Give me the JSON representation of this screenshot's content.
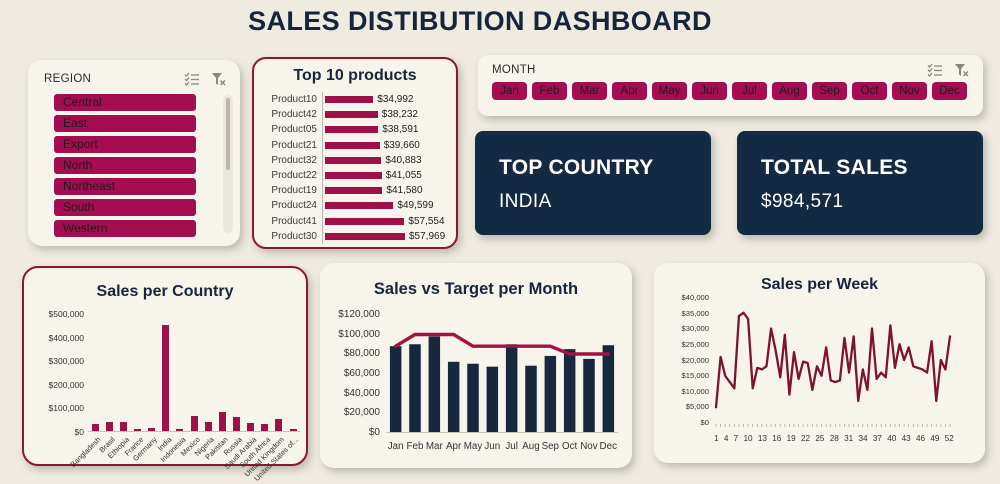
{
  "title": "SALES DISTIBUTION DASHBOARD",
  "colors": {
    "accent_crimson": "#A40D4F",
    "bar_crimson": "#9E1048",
    "line_crimson": "#A31243",
    "week_line_maroon": "#7D1232",
    "navy": "#16273E",
    "kpi_navy": "#132A42",
    "card_bg": "#F7F4EC",
    "page_bg": "#EFEBE1"
  },
  "region_slicer": {
    "label": "REGION",
    "icons": [
      "multi-select-icon",
      "clear-filter-icon"
    ],
    "items": [
      "Central",
      "East",
      "Export",
      "North",
      "Northeast",
      "South",
      "Western"
    ]
  },
  "month_slicer": {
    "label": "MONTH",
    "icons": [
      "multi-select-icon",
      "clear-filter-icon"
    ],
    "items": [
      "Jan",
      "Feb",
      "Mar",
      "Apr",
      "May",
      "Jun",
      "Jul",
      "Aug",
      "Sep",
      "Oct",
      "Nov",
      "Dec"
    ]
  },
  "cards": {
    "top_country": {
      "label": "TOP COUNTRY",
      "value": "INDIA"
    },
    "total_sales": {
      "label": "TOTAL SALES",
      "value": "$984,571"
    }
  },
  "chart_data": [
    {
      "id": "top_products",
      "type": "bar",
      "orientation": "horizontal",
      "title": "Top 10 products",
      "categories": [
        "Product10",
        "Product42",
        "Product05",
        "Product21",
        "Product32",
        "Product22",
        "Product19",
        "Product24",
        "Product41",
        "Product30"
      ],
      "values": [
        34992,
        38232,
        38591,
        39660,
        40883,
        41055,
        41580,
        49599,
        57554,
        57969
      ],
      "value_labels": [
        "$34,992",
        "$38,232",
        "$38,591",
        "$39,660",
        "$40,883",
        "$41,055",
        "$41,580",
        "$49,599",
        "$57,554",
        "$57,969"
      ]
    },
    {
      "id": "sales_per_country",
      "type": "bar",
      "title": "Sales per Country",
      "categories": [
        "Bangladesh",
        "Brasil",
        "Ethiopia",
        "France",
        "Germany",
        "India",
        "Indonesia",
        "Mexico",
        "Nigeria",
        "Pakistan",
        "Russia",
        "Saudi Arabia",
        "South Africa",
        "United Kingdom",
        "United States of..."
      ],
      "values": [
        28000,
        38000,
        38000,
        8000,
        12000,
        450000,
        8000,
        65000,
        40000,
        80000,
        60000,
        33000,
        28000,
        52000,
        10000
      ],
      "ylim": [
        0,
        500000
      ],
      "ytick_labels": [
        "$0",
        "$100,000",
        "$200,000",
        "$300,000",
        "$400,000",
        "$500,000"
      ],
      "grid": false,
      "legend": false
    },
    {
      "id": "sales_vs_target",
      "type": "combo",
      "title": "Sales vs Target per Month",
      "categories": [
        "Jan",
        "Feb",
        "Mar",
        "Apr",
        "May",
        "Jun",
        "Jul",
        "Aug",
        "Sep",
        "Oct",
        "Nov",
        "Dec"
      ],
      "series": [
        {
          "name": "Sales",
          "type": "bar",
          "values": [
            88000,
            90000,
            98000,
            72000,
            70000,
            67000,
            90000,
            68000,
            78000,
            85000,
            75000,
            89000
          ]
        },
        {
          "name": "Target",
          "type": "line",
          "values": [
            88000,
            100000,
            100000,
            100000,
            88000,
            88000,
            88000,
            88000,
            88000,
            80000,
            80000,
            80000
          ]
        }
      ],
      "ylim": [
        0,
        120000
      ],
      "ytick_labels": [
        "$0",
        "$20,000",
        "$40,000",
        "$60,000",
        "$80,000",
        "$100,000",
        "$120,000"
      ],
      "grid": false,
      "legend": false
    },
    {
      "id": "sales_per_week",
      "type": "line",
      "title": "Sales per Week",
      "x": [
        1,
        2,
        3,
        4,
        5,
        6,
        7,
        8,
        9,
        10,
        11,
        12,
        13,
        14,
        15,
        16,
        17,
        18,
        19,
        20,
        21,
        22,
        23,
        24,
        25,
        26,
        27,
        28,
        29,
        30,
        31,
        32,
        33,
        34,
        35,
        36,
        37,
        38,
        39,
        40,
        41,
        42,
        43,
        44,
        45,
        46,
        47,
        48,
        49,
        50,
        51,
        52
      ],
      "values": [
        5000,
        21000,
        15000,
        13000,
        11000,
        34000,
        35000,
        33000,
        11000,
        17500,
        17000,
        18000,
        30000,
        23000,
        14500,
        28000,
        9000,
        22500,
        14000,
        19500,
        19000,
        10500,
        18000,
        15000,
        24000,
        13500,
        13000,
        13500,
        27000,
        16000,
        27500,
        7000,
        17000,
        10500,
        30000,
        14000,
        16000,
        14500,
        31000,
        17500,
        25000,
        20000,
        24000,
        18000,
        17500,
        17000,
        16000,
        26000,
        7000,
        20000,
        17000,
        27500
      ],
      "xtick_labels": [
        "1",
        "4",
        "7",
        "10",
        "13",
        "16",
        "19",
        "22",
        "25",
        "28",
        "31",
        "34",
        "37",
        "40",
        "43",
        "46",
        "49",
        "52"
      ],
      "ylim": [
        0,
        40000
      ],
      "ytick_labels": [
        "$0",
        "$5,000",
        "$10,000",
        "$15,000",
        "$20,000",
        "$25,000",
        "$30,000",
        "$35,000",
        "$40,000"
      ],
      "grid": false,
      "legend": false
    }
  ]
}
